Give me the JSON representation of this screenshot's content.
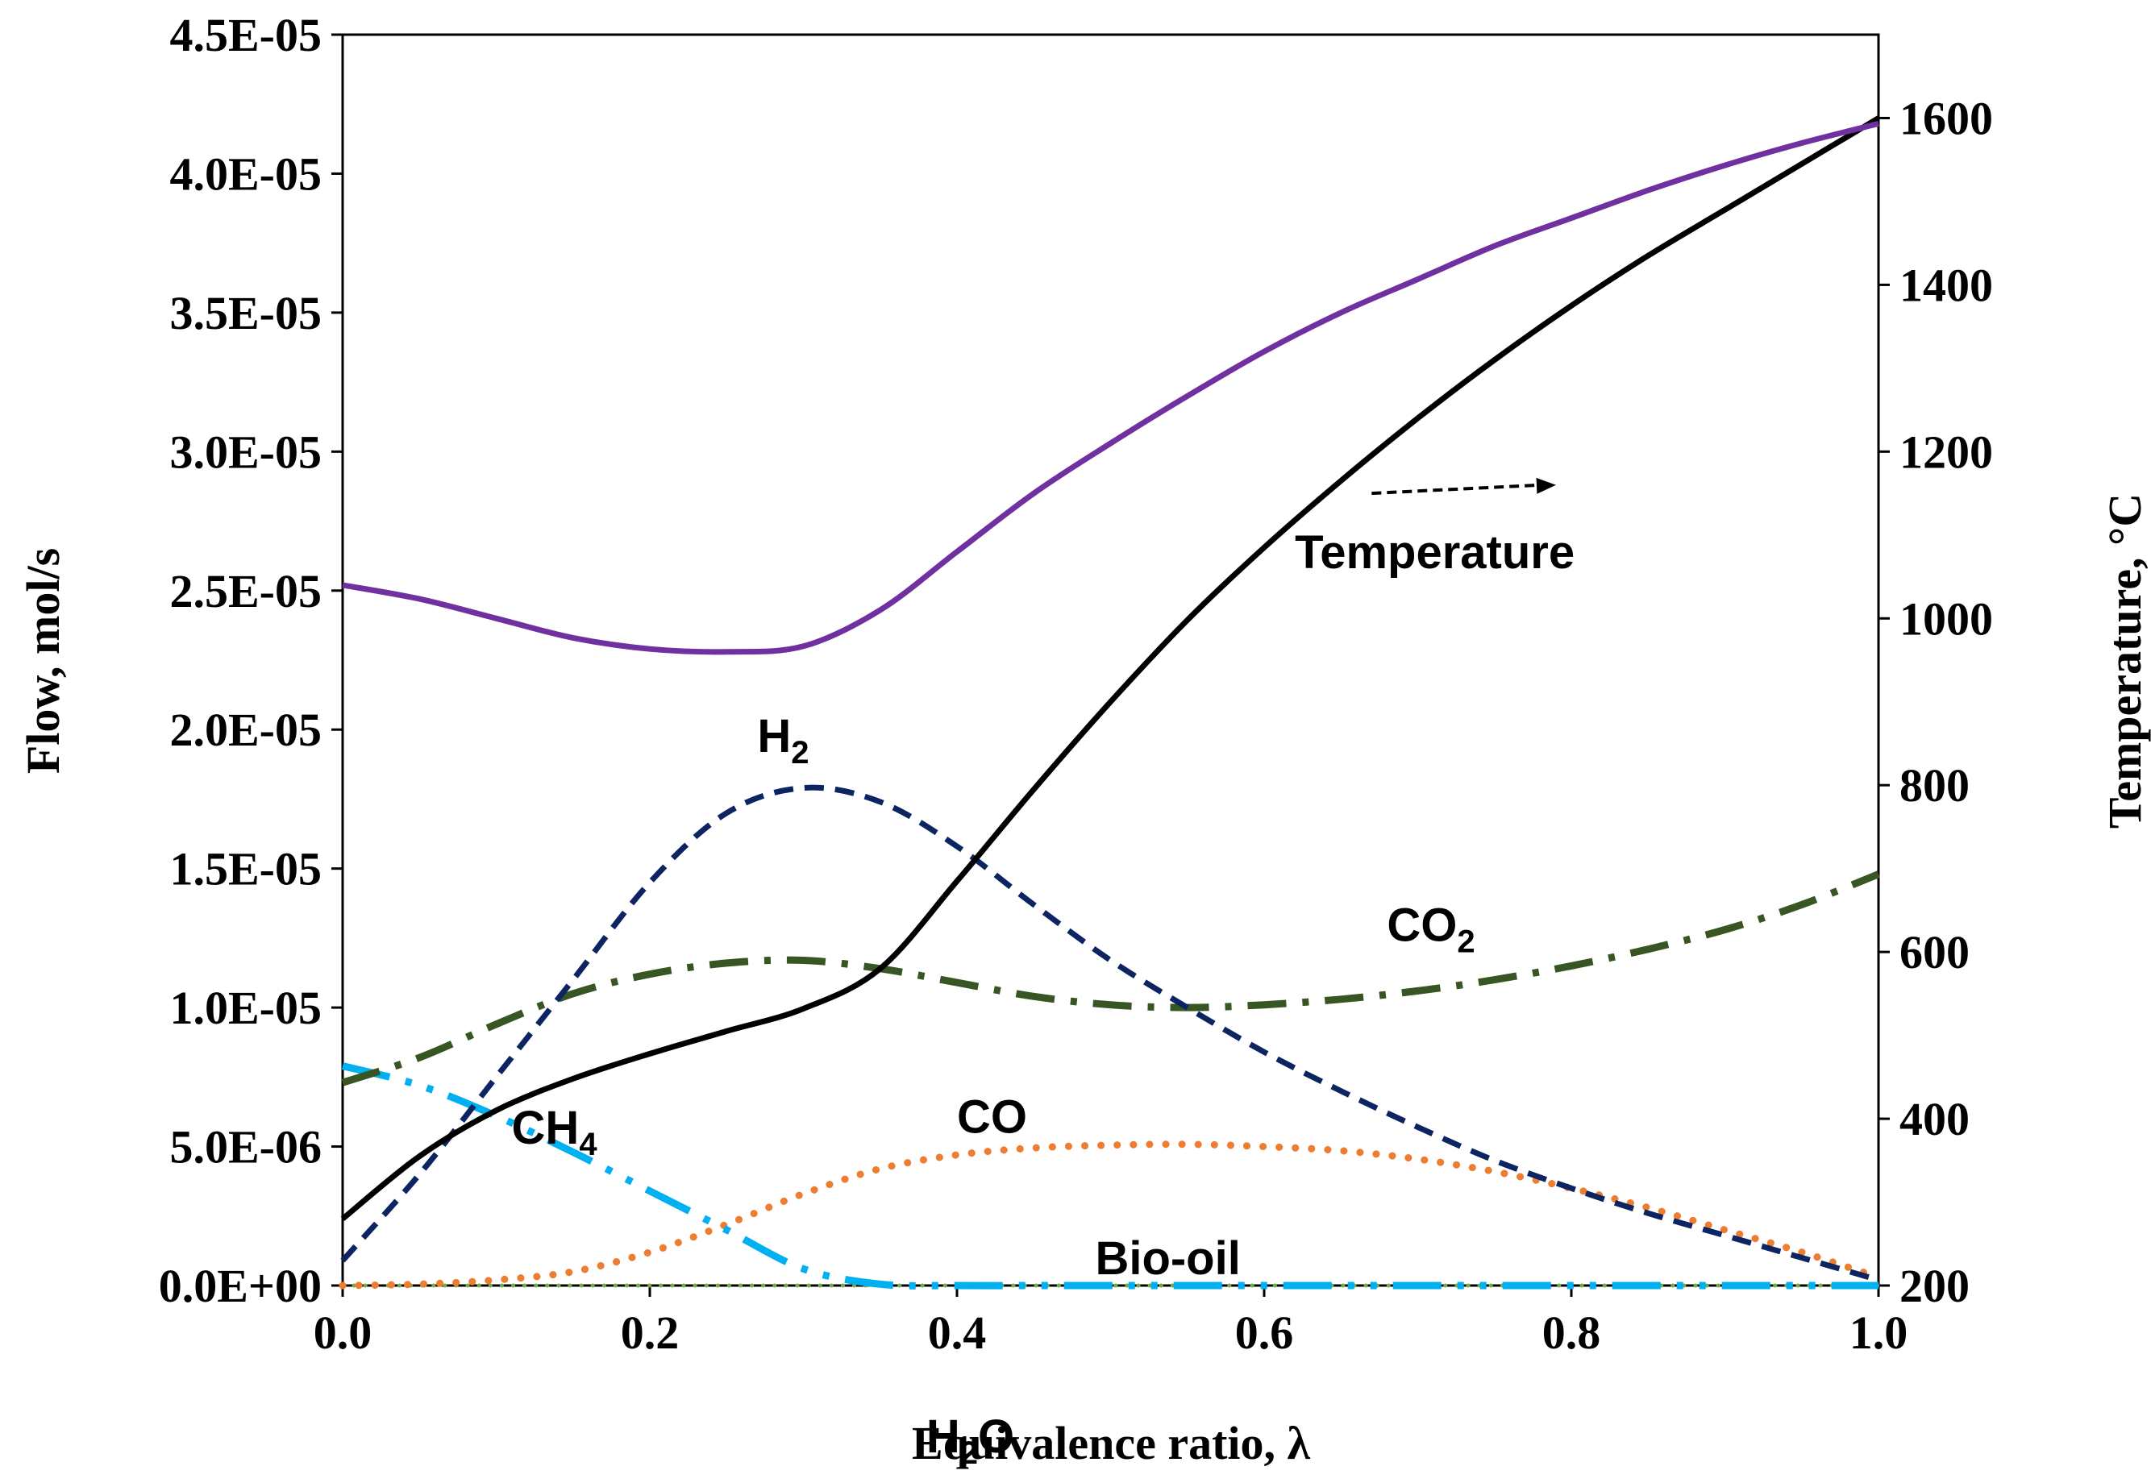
{
  "chart_data": {
    "type": "line",
    "xlabel": "Equivalence ratio, λ",
    "ylabel_left": "Flow, mol/s",
    "ylabel_right": "Temperature, °C",
    "xlim": [
      0,
      1
    ],
    "ylim_left": [
      0,
      4.5e-05
    ],
    "ylim_right": [
      200,
      1700
    ],
    "x_ticks": [
      "0.0",
      "0.2",
      "0.4",
      "0.6",
      "0.8",
      "1.0"
    ],
    "y_ticks_left": [
      "0.0E+00",
      "5.0E-06",
      "1.0E-05",
      "1.5E-05",
      "2.0E-05",
      "2.5E-05",
      "3.0E-05",
      "3.5E-05",
      "4.0E-05",
      "4.5E-05"
    ],
    "y_ticks_right": [
      "200",
      "400",
      "600",
      "800",
      "1000",
      "1200",
      "1400",
      "1600"
    ],
    "x_tick_values": [
      0,
      0.2,
      0.4,
      0.6,
      0.8,
      1.0
    ],
    "y_tick_values_left": [
      0,
      5e-06,
      1e-05,
      1.5e-05,
      2e-05,
      2.5e-05,
      3e-05,
      3.5e-05,
      4e-05,
      4.5e-05
    ],
    "y_tick_values_right": [
      200,
      400,
      600,
      800,
      1000,
      1200,
      1400,
      1600
    ],
    "grid": false,
    "x": [
      0,
      0.05,
      0.1,
      0.15,
      0.2,
      0.25,
      0.3,
      0.35,
      0.4,
      0.45,
      0.5,
      0.55,
      0.6,
      0.65,
      0.7,
      0.75,
      0.8,
      0.85,
      0.9,
      0.95,
      1.0
    ],
    "series": [
      {
        "name": "H2O",
        "label_main": "H",
        "label_sub": "2",
        "label_tail": "O",
        "axis": "left",
        "color": "#7030a0",
        "style": "solid",
        "values": [
          2.52e-05,
          2.47e-05,
          2.4e-05,
          2.33e-05,
          2.29e-05,
          2.28e-05,
          2.3e-05,
          2.43e-05,
          2.64e-05,
          2.85e-05,
          3.03e-05,
          3.2e-05,
          3.36e-05,
          3.5e-05,
          3.62e-05,
          3.74e-05,
          3.84e-05,
          3.94e-05,
          4.03e-05,
          4.11e-05,
          4.18e-05
        ]
      },
      {
        "name": "Temperature",
        "label_main": "Temperature",
        "label_sub": "",
        "label_tail": "",
        "axis": "right",
        "color": "#000000",
        "style": "solid",
        "values": [
          280,
          355,
          410,
          448,
          478,
          505,
          532,
          580,
          685,
          795,
          900,
          998,
          1085,
          1165,
          1240,
          1310,
          1375,
          1435,
          1490,
          1545,
          1600
        ]
      },
      {
        "name": "H2",
        "label_main": "H",
        "label_sub": "2",
        "label_tail": "",
        "axis": "left",
        "color": "#0c2461",
        "style": "dashed",
        "values": [
          9e-07,
          4e-06,
          7.5e-06,
          1.1e-05,
          1.45e-05,
          1.7e-05,
          1.79e-05,
          1.74e-05,
          1.58e-05,
          1.37e-05,
          1.17e-05,
          1e-05,
          8.4e-06,
          7e-06,
          5.7e-06,
          4.5e-06,
          3.5e-06,
          2.6e-06,
          1.8e-06,
          1e-06,
          2e-07
        ]
      },
      {
        "name": "CO2",
        "label_main": "CO",
        "label_sub": "2",
        "label_tail": "",
        "axis": "left",
        "color": "#375623",
        "style": "dashdot",
        "values": [
          7.3e-06,
          8.2e-06,
          9.4e-06,
          1.05e-05,
          1.12e-05,
          1.16e-05,
          1.17e-05,
          1.14e-05,
          1.09e-05,
          1.04e-05,
          1.01e-05,
          1e-05,
          1.01e-05,
          1.03e-05,
          1.06e-05,
          1.1e-05,
          1.15e-05,
          1.21e-05,
          1.28e-05,
          1.37e-05,
          1.48e-05
        ]
      },
      {
        "name": "CO",
        "label_main": "CO",
        "label_sub": "",
        "label_tail": "",
        "axis": "left",
        "color": "#ed7d31",
        "style": "dotted",
        "values": [
          0,
          5e-08,
          2e-07,
          5e-07,
          1.2e-06,
          2.2e-06,
          3.3e-06,
          4.2e-06,
          4.7e-06,
          4.95e-06,
          5.05e-06,
          5.08e-06,
          5e-06,
          4.85e-06,
          4.55e-06,
          4.1e-06,
          3.5e-06,
          2.8e-06,
          2e-06,
          1.2e-06,
          3e-07
        ]
      },
      {
        "name": "CH4",
        "label_main": "CH",
        "label_sub": "4",
        "label_tail": "",
        "axis": "left",
        "color": "#00b0f0",
        "style": "longdashdotdot",
        "values": [
          7.9e-06,
          7.2e-06,
          6.1e-06,
          4.8e-06,
          3.4e-06,
          2e-06,
          6e-07,
          5e-08,
          0,
          0,
          0,
          0,
          0,
          0,
          0,
          0,
          0,
          0,
          0,
          0,
          0
        ]
      },
      {
        "name": "Bio-oil",
        "label_main": "Bio-oil",
        "label_sub": "",
        "label_tail": "",
        "axis": "left",
        "color": "#70ad47",
        "style": "dotted",
        "values": [
          0,
          0,
          0,
          0,
          0,
          0,
          0,
          0,
          0,
          0,
          0,
          0,
          0,
          0,
          0,
          0,
          0,
          0,
          0,
          0,
          0
        ]
      }
    ],
    "annotation": {
      "arrow_from": [
        0.67,
        1150
      ],
      "arrow_to": [
        0.79,
        1160
      ],
      "axis": "right",
      "color": "#000000",
      "style": "dashed"
    }
  }
}
